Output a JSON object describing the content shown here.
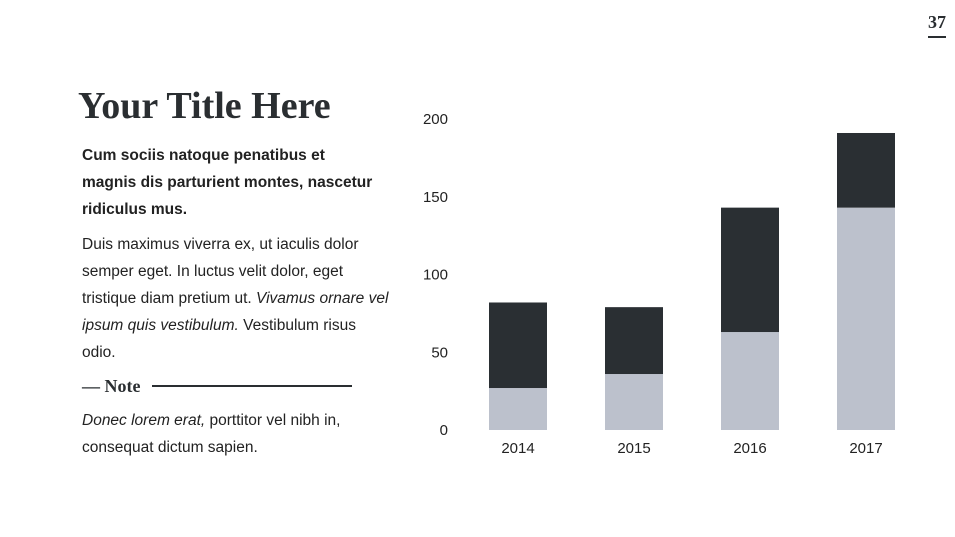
{
  "page_number": "37",
  "title": "Your Title Here",
  "lead": "Cum sociis natoque penatibus et magnis dis parturient montes, nascetur ridiculus mus.",
  "body": {
    "plain": "Duis maximus viverra ex, ut iaculis dolor semper eget. In luctus velit dolor, eget tristique diam pretium ut. ",
    "italic": "Vivamus ornare vel ipsum quis vestibulum.",
    "tail": " Vestibulum risus odio."
  },
  "note": {
    "label": "— Note",
    "italic": "Donec lorem erat,",
    "text": " porttitor vel nibh in, consequat dictum sapien."
  },
  "colors": {
    "dark": "#2a2f33",
    "light": "#bcc1cc",
    "text": "#2a2e31"
  },
  "chart_data": {
    "type": "bar",
    "stacked": true,
    "categories": [
      "2014",
      "2015",
      "2016",
      "2017"
    ],
    "series": [
      {
        "values": [
          27,
          36,
          63,
          143
        ],
        "color": "#bcc1cc"
      },
      {
        "values": [
          55,
          43,
          80,
          48
        ],
        "color": "#2a2f33"
      }
    ],
    "ylim": [
      0,
      200
    ],
    "yticks": [
      0,
      50,
      100,
      150,
      200
    ],
    "xlabel": "",
    "ylabel": "",
    "grid": false
  }
}
